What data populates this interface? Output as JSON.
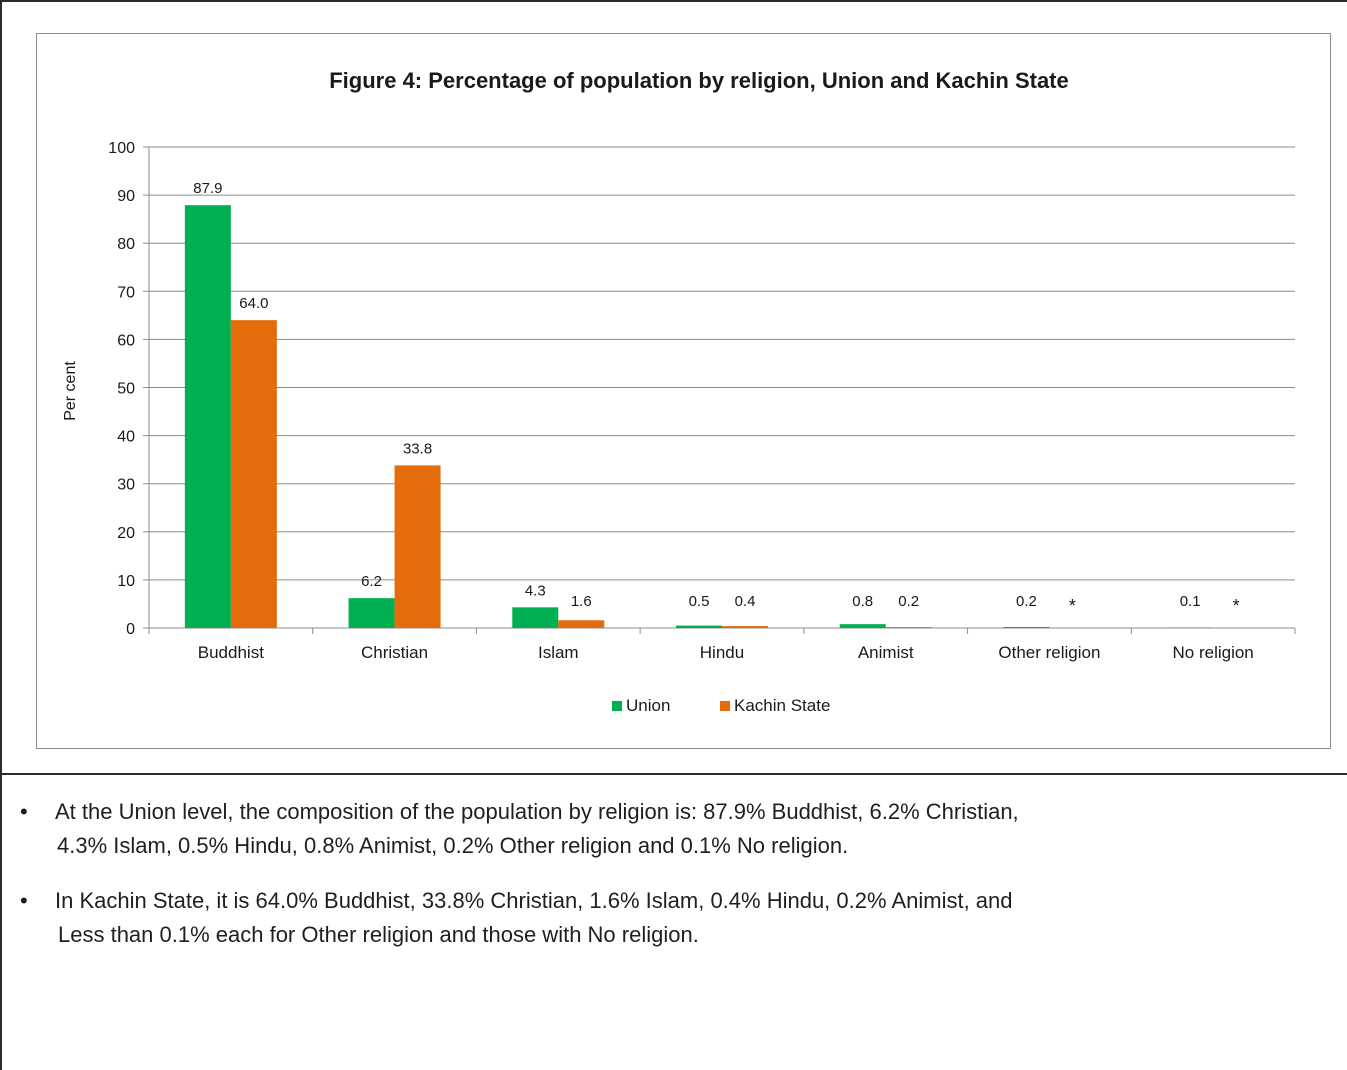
{
  "chart_data": {
    "type": "bar",
    "title": "Figure 4: Percentage of population by religion, Union and Kachin State",
    "xlabel": "",
    "ylabel": "Per cent",
    "ylim": [
      0,
      100
    ],
    "yticks": [
      "0",
      "10",
      "20",
      "30",
      "40",
      "50",
      "60",
      "70",
      "80",
      "90",
      "100"
    ],
    "grid": true,
    "legend_position": "bottom",
    "categories": [
      "Buddhist",
      "Christian",
      "Islam",
      "Hindu",
      "Animist",
      "Other religion",
      "No religion"
    ],
    "series": [
      {
        "name": "Union",
        "color": "#00b050",
        "values": [
          87.9,
          6.2,
          4.3,
          0.5,
          0.8,
          0.2,
          0.1
        ],
        "labels": [
          "87.9",
          "6.2",
          "4.3",
          "0.5",
          "0.8",
          "0.2",
          "0.1"
        ]
      },
      {
        "name": "Kachin State",
        "color": "#e46c0a",
        "values": [
          64.0,
          33.8,
          1.6,
          0.4,
          0.2,
          0,
          0
        ],
        "labels": [
          "64.0",
          "33.8",
          "1.6",
          "0.4",
          "0.2",
          "*",
          "*"
        ]
      }
    ]
  },
  "bullets": {
    "symbol": "•",
    "items": [
      {
        "line1": "At the Union level, the composition of the population by religion is: 87.9% Buddhist, 6.2% Christian,",
        "line2": "4.3% Islam, 0.5% Hindu, 0.8% Animist, 0.2% Other religion and 0.1% No religion."
      },
      {
        "line1": "In Kachin State, it is 64.0% Buddhist, 33.8% Christian, 1.6% Islam, 0.4% Hindu, 0.2% Animist, and",
        "line2": "Less than 0.1% each for Other religion and those with No religion."
      }
    ]
  }
}
